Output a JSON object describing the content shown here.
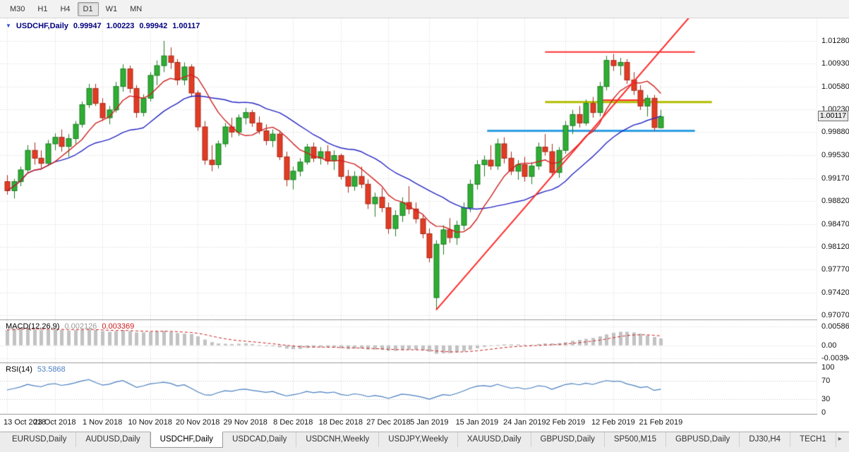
{
  "toolbar": {
    "timeframes": [
      {
        "label": "M30",
        "active": false
      },
      {
        "label": "H1",
        "active": false
      },
      {
        "label": "H4",
        "active": false
      },
      {
        "label": "D1",
        "active": true
      },
      {
        "label": "W1",
        "active": false
      },
      {
        "label": "MN",
        "active": false
      }
    ]
  },
  "chart_header": {
    "collapse_icon": "▼",
    "symbol": "USDCHF,Daily",
    "open": "0.99947",
    "high": "1.00223",
    "low": "0.99942",
    "close": "1.00117"
  },
  "colors": {
    "bull": "#2fae34",
    "bull_border": "#1d7d22",
    "bear": "#e23b24",
    "bear_border": "#a82a19",
    "ma_fast": "#d02020",
    "ma_slow": "#2626c4",
    "trendline": "#ff2a2a",
    "hline_red": "#ff3030",
    "hline_olive": "#b3bd00",
    "hline_blue": "#2e9fe6",
    "macd_bar": "#c2c2c2",
    "macd_signal": "#cf2020",
    "rsi_line": "#4a7fc0",
    "grid": "#d8d8d8",
    "level": "#c6c6c6",
    "separator": "#9c9c9c",
    "header_text": "#00007e"
  },
  "chart_data": {
    "type": "candlestick",
    "symbol": "USDCHF",
    "timeframe": "Daily",
    "ohlc": [
      [
        0.9912,
        0.9922,
        0.9892,
        0.9898
      ],
      [
        0.9898,
        0.9916,
        0.9886,
        0.9912
      ],
      [
        0.9912,
        0.9935,
        0.9905,
        0.993
      ],
      [
        0.993,
        0.9968,
        0.9925,
        0.996
      ],
      [
        0.996,
        0.9972,
        0.9938,
        0.9948
      ],
      [
        0.9948,
        0.996,
        0.9932,
        0.994
      ],
      [
        0.994,
        0.9976,
        0.9936,
        0.997
      ],
      [
        0.997,
        0.9986,
        0.996,
        0.998
      ],
      [
        0.998,
        0.9992,
        0.9958,
        0.9966
      ],
      [
        0.9966,
        0.9985,
        0.995,
        0.9978
      ],
      [
        0.9978,
        1.0005,
        0.997,
        1.0
      ],
      [
        1.0,
        1.0035,
        0.9995,
        1.003
      ],
      [
        1.003,
        1.0062,
        1.0025,
        1.0055
      ],
      [
        1.0055,
        1.0062,
        1.0028,
        1.0032
      ],
      [
        1.0032,
        1.004,
        1.0005,
        1.001
      ],
      [
        1.001,
        1.0028,
        1.0,
        1.0022
      ],
      [
        1.0022,
        1.0065,
        1.0018,
        1.0058
      ],
      [
        1.0058,
        1.0092,
        1.005,
        1.0085
      ],
      [
        1.0085,
        1.009,
        1.0048,
        1.0055
      ],
      [
        1.0055,
        1.006,
        1.001,
        1.0018
      ],
      [
        1.0018,
        1.0046,
        1.0012,
        1.004
      ],
      [
        1.004,
        1.008,
        1.0035,
        1.0075
      ],
      [
        1.0075,
        1.0098,
        1.006,
        1.009
      ],
      [
        1.009,
        1.0128,
        1.008,
        1.0105
      ],
      [
        1.0105,
        1.0118,
        1.0085,
        1.0095
      ],
      [
        1.0095,
        1.01,
        1.006,
        1.0068
      ],
      [
        1.0068,
        1.0095,
        1.006,
        1.0088
      ],
      [
        1.0088,
        1.0092,
        1.0042,
        1.0048
      ],
      [
        1.0048,
        1.0052,
        0.999,
        0.9996
      ],
      [
        0.9996,
        1.0005,
        0.9938,
        0.9945
      ],
      [
        0.9945,
        0.9968,
        0.9928,
        0.9938
      ],
      [
        0.9938,
        0.9975,
        0.9932,
        0.997
      ],
      [
        0.997,
        1.0002,
        0.9965,
        0.9996
      ],
      [
        0.9996,
        1.001,
        0.998,
        0.9988
      ],
      [
        0.9988,
        1.0015,
        0.9982,
        1.001
      ],
      [
        1.001,
        1.0025,
        1.0,
        1.0018
      ],
      [
        1.0018,
        1.0022,
        0.9996,
        1.0002
      ],
      [
        1.0002,
        1.0012,
        0.9985,
        0.999
      ],
      [
        0.999,
        1.0,
        0.9968,
        0.9975
      ],
      [
        0.9975,
        0.9992,
        0.9965,
        0.9985
      ],
      [
        0.9985,
        0.999,
        0.9945,
        0.995
      ],
      [
        0.995,
        0.9958,
        0.9905,
        0.9915
      ],
      [
        0.9915,
        0.9935,
        0.99,
        0.9928
      ],
      [
        0.9928,
        0.9948,
        0.992,
        0.9942
      ],
      [
        0.9942,
        0.997,
        0.9938,
        0.9965
      ],
      [
        0.9965,
        0.9972,
        0.9942,
        0.9948
      ],
      [
        0.9948,
        0.9965,
        0.9938,
        0.9958
      ],
      [
        0.9958,
        0.9968,
        0.9938,
        0.9944
      ],
      [
        0.9944,
        0.996,
        0.993,
        0.9952
      ],
      [
        0.9952,
        0.9955,
        0.9915,
        0.992
      ],
      [
        0.992,
        0.993,
        0.9895,
        0.9905
      ],
      [
        0.9905,
        0.9928,
        0.9898,
        0.992
      ],
      [
        0.992,
        0.9935,
        0.9902,
        0.9908
      ],
      [
        0.9908,
        0.9915,
        0.987,
        0.9878
      ],
      [
        0.9878,
        0.9895,
        0.9858,
        0.9888
      ],
      [
        0.9888,
        0.9902,
        0.9865,
        0.9872
      ],
      [
        0.9872,
        0.988,
        0.9832,
        0.984
      ],
      [
        0.984,
        0.9868,
        0.9828,
        0.986
      ],
      [
        0.986,
        0.9888,
        0.985,
        0.988
      ],
      [
        0.988,
        0.9905,
        0.9862,
        0.987
      ],
      [
        0.987,
        0.988,
        0.9848,
        0.9855
      ],
      [
        0.9855,
        0.9862,
        0.9825,
        0.9832
      ],
      [
        0.9832,
        0.984,
        0.9788,
        0.9795
      ],
      [
        0.9734,
        0.9822,
        0.9716,
        0.9816
      ],
      [
        0.9816,
        0.9845,
        0.98,
        0.9838
      ],
      [
        0.9838,
        0.9856,
        0.9818,
        0.9826
      ],
      [
        0.9826,
        0.9852,
        0.9815,
        0.9845
      ],
      [
        0.9845,
        0.988,
        0.9838,
        0.9872
      ],
      [
        0.9872,
        0.9915,
        0.9865,
        0.9908
      ],
      [
        0.9908,
        0.9945,
        0.99,
        0.9938
      ],
      [
        0.9938,
        0.9952,
        0.992,
        0.9945
      ],
      [
        0.9945,
        0.9968,
        0.993,
        0.9936
      ],
      [
        0.9936,
        0.9978,
        0.993,
        0.997
      ],
      [
        0.997,
        0.998,
        0.994,
        0.9948
      ],
      [
        0.9948,
        0.9958,
        0.9922,
        0.9928
      ],
      [
        0.9928,
        0.9945,
        0.9915,
        0.9938
      ],
      [
        0.9938,
        0.995,
        0.9912,
        0.992
      ],
      [
        0.992,
        0.9942,
        0.9908,
        0.9936
      ],
      [
        0.9936,
        0.9972,
        0.993,
        0.9965
      ],
      [
        0.9965,
        0.9985,
        0.9952,
        0.9958
      ],
      [
        0.9958,
        0.997,
        0.992,
        0.9926
      ],
      [
        0.9926,
        0.9965,
        0.9918,
        0.996
      ],
      [
        0.996,
        1.0005,
        0.9955,
        0.9998
      ],
      [
        0.9998,
        1.0022,
        0.9985,
        1.0015
      ],
      [
        1.0015,
        1.0028,
        0.9995,
        1.0002
      ],
      [
        1.0002,
        1.0038,
        0.9998,
        1.0032
      ],
      [
        1.0032,
        1.0042,
        1.001,
        1.0018
      ],
      [
        1.0018,
        1.0065,
        1.0012,
        1.0058
      ],
      [
        1.0058,
        1.0105,
        1.0052,
        1.0098
      ],
      [
        1.0098,
        1.0108,
        1.0082,
        1.009
      ],
      [
        1.009,
        1.0102,
        1.0075,
        1.0095
      ],
      [
        1.0095,
        1.01,
        1.0062,
        1.0068
      ],
      [
        1.0068,
        1.008,
        1.0045,
        1.0052
      ],
      [
        1.0052,
        1.006,
        1.0022,
        1.0028
      ],
      [
        1.0028,
        1.0045,
        1.0012,
        1.004
      ],
      [
        1.004,
        1.0045,
        0.999,
        0.9995
      ],
      [
        0.99947,
        1.00223,
        0.99942,
        1.00117
      ]
    ],
    "x_labels": [
      {
        "label": "13 Oct 2018",
        "index": 0
      },
      {
        "label": "23 Oct 2018",
        "index": 7
      },
      {
        "label": "1 Nov 2018",
        "index": 14
      },
      {
        "label": "10 Nov 2018",
        "index": 21
      },
      {
        "label": "20 Nov 2018",
        "index": 28
      },
      {
        "label": "29 Nov 2018",
        "index": 35
      },
      {
        "label": "8 Dec 2018",
        "index": 42
      },
      {
        "label": "18 Dec 2018",
        "index": 49
      },
      {
        "label": "27 Dec 2018",
        "index": 56
      },
      {
        "label": "5 Jan 2019",
        "index": 62
      },
      {
        "label": "15 Jan 2019",
        "index": 69
      },
      {
        "label": "24 Jan 2019",
        "index": 76
      },
      {
        "label": "2 Feb 2019",
        "index": 82
      },
      {
        "label": "12 Feb 2019",
        "index": 89
      },
      {
        "label": "21 Feb 2019",
        "index": 96
      }
    ],
    "y_axis": {
      "ylim": [
        0.97005,
        1.01626
      ],
      "ticks": [
        {
          "label": "1.01280",
          "price": 1.0128
        },
        {
          "label": "1.00930",
          "price": 1.0093
        },
        {
          "label": "1.00580",
          "price": 1.0058
        },
        {
          "label": "1.00230",
          "price": 1.0023
        },
        {
          "label": "0.99880",
          "price": 0.9988
        },
        {
          "label": "0.99530",
          "price": 0.9953
        },
        {
          "label": "0.99170",
          "price": 0.9917
        },
        {
          "label": "0.98820",
          "price": 0.9882
        },
        {
          "label": "0.98470",
          "price": 0.9847
        },
        {
          "label": "0.98120",
          "price": 0.9812
        },
        {
          "label": "0.97770",
          "price": 0.9777
        },
        {
          "label": "0.97420",
          "price": 0.9742
        },
        {
          "label": "0.97070",
          "price": 0.9707
        }
      ]
    },
    "current_price": {
      "label": "1.00117",
      "value": 1.00117
    },
    "overlays": {
      "sma_fast_period": 8,
      "sma_slow_period": 21,
      "trendline": {
        "from_index": 63,
        "price_from": 0.9715,
        "to_index": 100.5,
        "price_to": 1.0168,
        "width": 2
      },
      "hlines": [
        {
          "price": 1.0111,
          "from": 79,
          "to": 101,
          "color": "hline_red",
          "width": 2
        },
        {
          "price": 1.0034,
          "from": 79,
          "to": 103.5,
          "color": "hline_olive",
          "width": 3
        },
        {
          "price": 1.0037,
          "from": 87.5,
          "to": 94,
          "color": "hline_red",
          "width": 2
        },
        {
          "price": 0.999,
          "from": 70.5,
          "to": 101,
          "color": "hline_blue",
          "width": 3
        }
      ]
    },
    "macd": {
      "label": "MACD(12,26,9)",
      "value_main": "0.002126",
      "value_signal": "0.003369",
      "signal_period": 9,
      "ylim": [
        -0.0053,
        0.0076
      ],
      "ticks": [
        {
          "label": "0.005860",
          "value": 0.00586
        },
        {
          "label": "0.00",
          "value": 0
        },
        {
          "label": "-0.003945",
          "value": -0.003945
        }
      ],
      "values": [
        0.0048,
        0.0052,
        0.0055,
        0.0054,
        0.005,
        0.0047,
        0.0049,
        0.0051,
        0.0048,
        0.0046,
        0.0047,
        0.0049,
        0.0051,
        0.0048,
        0.0044,
        0.0042,
        0.0044,
        0.0047,
        0.0044,
        0.004,
        0.004,
        0.0042,
        0.0044,
        0.0045,
        0.0042,
        0.0038,
        0.0036,
        0.0035,
        0.0028,
        0.0018,
        0.001,
        0.0006,
        0.0005,
        0.0004,
        0.0005,
        0.0006,
        0.0004,
        0.0001,
        -0.0002,
        -0.0003,
        -0.0006,
        -0.001,
        -0.0012,
        -0.0011,
        -0.0008,
        -0.0007,
        -0.0006,
        -0.0007,
        -0.0007,
        -0.0009,
        -0.0011,
        -0.001,
        -0.001,
        -0.0013,
        -0.0013,
        -0.0014,
        -0.0017,
        -0.0017,
        -0.0015,
        -0.0014,
        -0.0014,
        -0.0016,
        -0.002,
        -0.0026,
        -0.0025,
        -0.0024,
        -0.0022,
        -0.0019,
        -0.0014,
        -0.0009,
        -0.0005,
        -0.0002,
        0.0001,
        0.0003,
        0.0003,
        0.0003,
        0.0002,
        0.0002,
        0.0004,
        0.0006,
        0.0006,
        0.0007,
        0.001,
        0.0014,
        0.0017,
        0.002,
        0.0023,
        0.0028,
        0.0034,
        0.0039,
        0.0042,
        0.0042,
        0.004,
        0.0036,
        0.0031,
        0.0026,
        0.002126
      ]
    },
    "rsi": {
      "label": "RSI(14)",
      "value": "53.5868",
      "period": 14,
      "levels": [
        70,
        30
      ],
      "ticks": [
        {
          "label": "100",
          "value": 100
        },
        {
          "label": "70",
          "value": 70
        },
        {
          "label": "30",
          "value": 30
        },
        {
          "label": "0",
          "value": 0
        }
      ]
    }
  },
  "tabs": {
    "scroll_icon": "▸",
    "items": [
      {
        "label": "EURUSD,Daily",
        "active": false
      },
      {
        "label": "AUDUSD,Daily",
        "active": false
      },
      {
        "label": "USDCHF,Daily",
        "active": true
      },
      {
        "label": "USDCAD,Daily",
        "active": false
      },
      {
        "label": "USDCNH,Weekly",
        "active": false
      },
      {
        "label": "USDJPY,Weekly",
        "active": false
      },
      {
        "label": "XAUUSD,Daily",
        "active": false
      },
      {
        "label": "GBPUSD,Daily",
        "active": false
      },
      {
        "label": "SP500,M15",
        "active": false
      },
      {
        "label": "GBPUSD,Daily",
        "active": false
      },
      {
        "label": "DJ30,H4",
        "active": false
      },
      {
        "label": "TECH1",
        "active": false
      }
    ]
  }
}
